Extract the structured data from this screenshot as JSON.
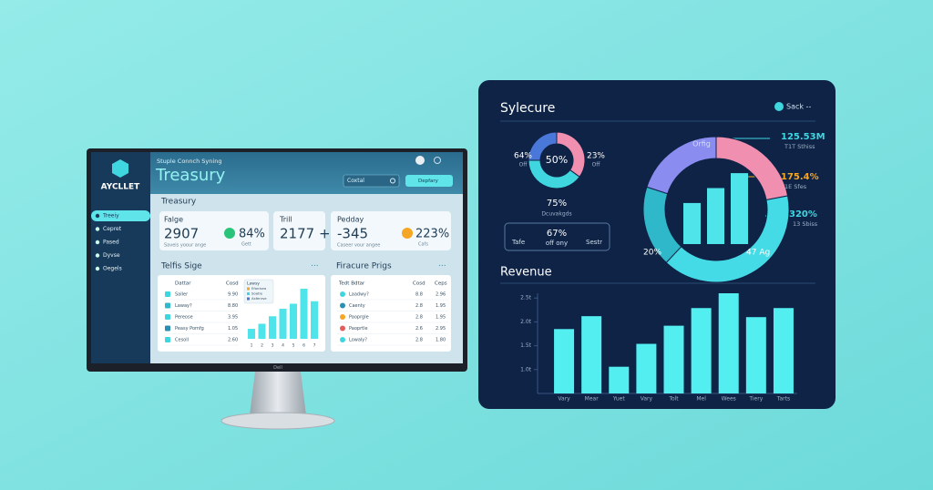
{
  "monitor": {
    "brand": "AYCLLET",
    "nav": [
      "Treeiy",
      "Cepret",
      "Pased",
      "Dyvse",
      "Oegels"
    ],
    "subtitle": "Stuple Connch Syning",
    "title": "Treasury",
    "search": "Coxtal",
    "button": "Depfary",
    "section": "Treasury",
    "cards": [
      {
        "label": "Falge",
        "value": "2907",
        "note": "Saveis yoour ange",
        "badge": "84%",
        "badge_note": "Gett"
      },
      {
        "label": "Trill",
        "value": "2177 +"
      },
      {
        "label": "Pedday",
        "value": "-345",
        "note": "Caseer vour angee",
        "badge": "223%",
        "badge_note": "Cafs"
      }
    ],
    "left_panel": {
      "title": "Telfis Sige",
      "columns": [
        "Dattar",
        "Cosd"
      ],
      "rows": [
        [
          "Saller",
          "9.90"
        ],
        [
          "Laway?",
          "8.80"
        ],
        [
          "Pereose",
          "3.95"
        ],
        [
          "Peasy Pomfg",
          "1.05"
        ],
        [
          "Cesoll",
          "2.60"
        ]
      ],
      "legend_title": "Lawsy",
      "legend": [
        "Efonisea",
        "Soatie",
        "Asfenrse"
      ],
      "bars": {
        "type": "bar",
        "categories": [
          "1",
          "2",
          "3",
          "4",
          "5",
          "6",
          "7"
        ],
        "values": [
          2,
          3,
          4.5,
          6,
          7,
          10,
          7.5
        ],
        "ylim": [
          0,
          10
        ],
        "color": "#4fe3ea"
      }
    },
    "right_panel": {
      "title": "Firacure Prigs",
      "columns": [
        "Tedt Bdtar",
        "Cosd",
        "Ceps"
      ],
      "rows": [
        [
          "Laadwy?",
          "8.8",
          "2.96"
        ],
        [
          "Caenty",
          "2.8",
          "1.95"
        ],
        [
          "Paoprgle",
          "2.8",
          "1.95"
        ],
        [
          "Paoprtle",
          "2.6",
          "2.95"
        ],
        [
          "Lowaly?",
          "2.8",
          "1.80"
        ]
      ]
    },
    "footer": "Dell"
  },
  "dashboard": {
    "title": "Sylecure",
    "toggle": "Sack --",
    "small_donut": {
      "type": "pie",
      "center": "50%",
      "values": [
        35,
        40,
        25
      ],
      "colors": [
        "#f08fb0",
        "#3fd6e0",
        "#4a78d8"
      ],
      "left": "64%",
      "left_note": "Off",
      "right": "23%",
      "right_note": "Off"
    },
    "stat": "75%",
    "stat_note": "Dcuvakgds",
    "box": {
      "left": "Tafe",
      "value": "67%",
      "note": "off ony",
      "right": "Sestr"
    },
    "big_donut": {
      "type": "pie",
      "values": [
        22,
        40,
        18,
        20
      ],
      "colors": [
        "#f08fb0",
        "#45dbe6",
        "#2fb8c9",
        "#8a8cf0"
      ],
      "inner_bars": {
        "values": [
          55,
          75,
          95
        ],
        "ylim": [
          0,
          100
        ],
        "color": "#4fe3ea"
      },
      "top_label": "Orfig",
      "callouts": [
        {
          "value": "125.53M",
          "note": "T1T Sthiss"
        },
        {
          "value": "175.4%",
          "note": "1E Sfes"
        },
        {
          "value": "320%",
          "note": "13 Sbiss"
        }
      ],
      "bottom_left": "20%",
      "bottom_right": "47 Ag"
    },
    "revenue": {
      "type": "bar",
      "title": "Revenue",
      "categories": [
        "Vary",
        "Mear",
        "Yuet",
        "Vary",
        "Tolt",
        "Mel",
        "Wees",
        "Tiery",
        "Tarts"
      ],
      "values": [
        1.85,
        2.12,
        1.06,
        1.54,
        1.92,
        2.29,
        2.6,
        2.1,
        2.29
      ],
      "color": "#52eef0",
      "ylim": [
        0.5,
        2.6
      ],
      "yticks": [
        {
          "value": 2.5,
          "label": "2.5t"
        },
        {
          "value": 2.0,
          "label": "2.0t"
        },
        {
          "value": 1.5,
          "label": "1.5t"
        },
        {
          "value": 1.0,
          "label": "1.0t"
        }
      ]
    }
  }
}
